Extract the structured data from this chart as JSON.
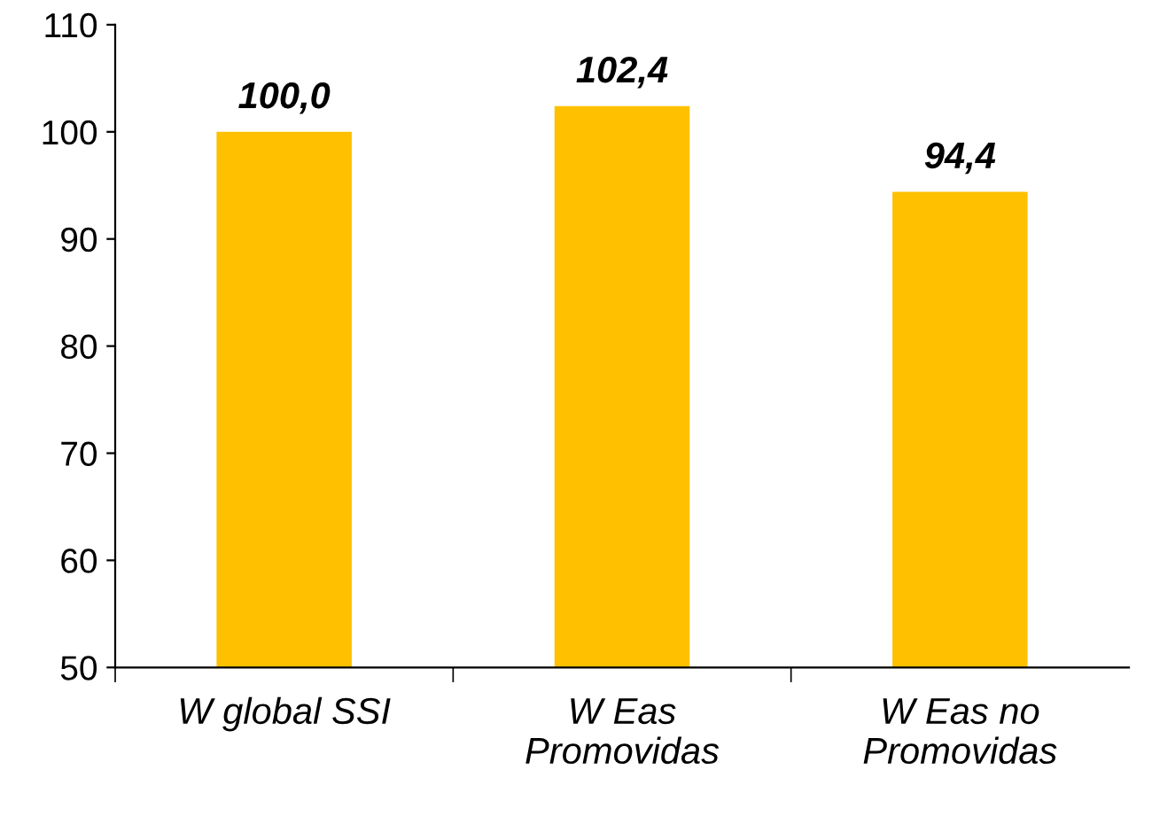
{
  "chart_data": {
    "type": "bar",
    "categories": [
      "W global SSI",
      "W Eas\nPromovidas",
      "W Eas no\nPromovidas"
    ],
    "values": [
      100.0,
      102.4,
      94.4
    ],
    "value_labels": [
      "100,0",
      "102,4",
      "94,4"
    ],
    "color": "#ffc000",
    "ylim": [
      50,
      110
    ],
    "yticks": [
      50,
      60,
      70,
      80,
      90,
      100,
      110
    ],
    "grid": false
  }
}
